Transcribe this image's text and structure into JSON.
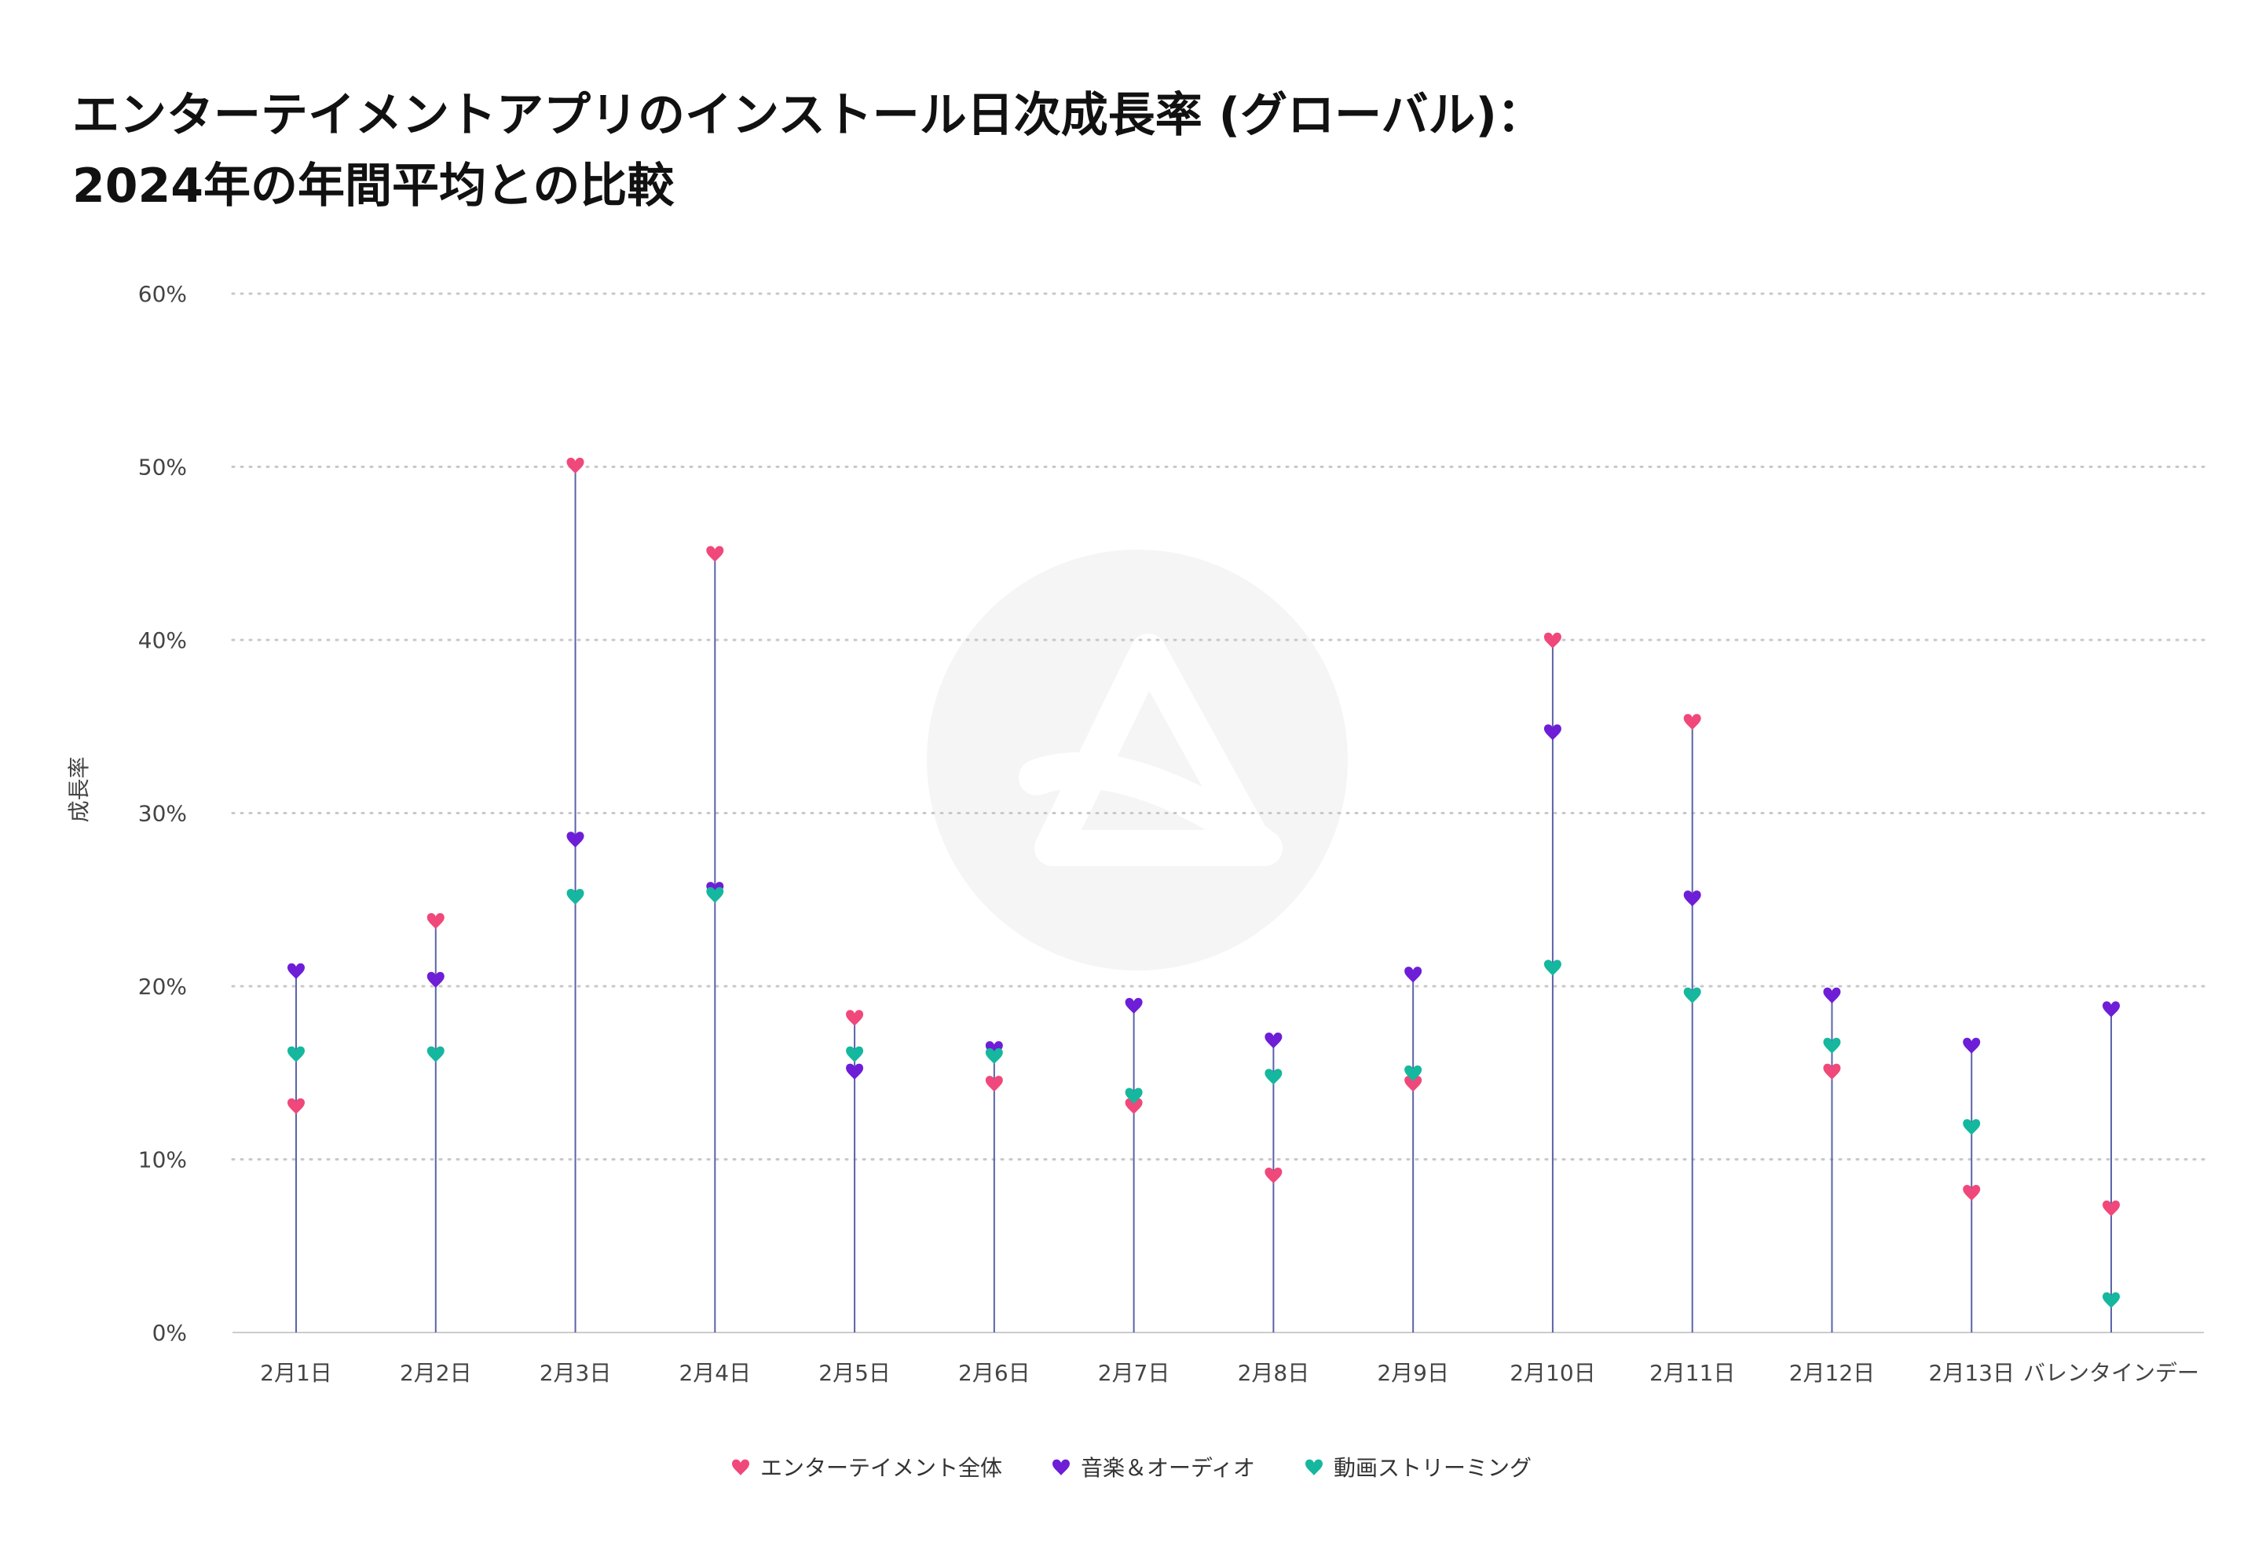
{
  "title_lines": [
    "エンターテイメントアプリのインストール日次成長率 (グローバル)：",
    "2024年の年間平均との比較"
  ],
  "colors": {
    "entertainment": "#f0487a",
    "music": "#6e1ed6",
    "video": "#15b89e",
    "stem": "#5b63a8",
    "grid": "#c8c8c8",
    "watermark": "#f5f5f5"
  },
  "chart_data": {
    "type": "dot-plot",
    "ylabel": "成長率",
    "ylim": [
      0,
      60
    ],
    "yticks": [
      {
        "value": 0,
        "label": "0%"
      },
      {
        "value": 10,
        "label": "10%"
      },
      {
        "value": 20,
        "label": "20%"
      },
      {
        "value": 30,
        "label": "30%"
      },
      {
        "value": 40,
        "label": "40%"
      },
      {
        "value": 50,
        "label": "50%"
      },
      {
        "value": 60,
        "label": "60%"
      }
    ],
    "grid": true,
    "legend_position": "bottom",
    "categories": [
      "2月1日",
      "2月2日",
      "2月3日",
      "2月4日",
      "2月5日",
      "2月6日",
      "2月7日",
      "2月8日",
      "2月9日",
      "2月10日",
      "2月11日",
      "2月12日",
      "2月13日",
      "バレンタインデー"
    ],
    "series": [
      {
        "key": "entertainment",
        "name": "エンターテイメント全体",
        "values": [
          13.1,
          23.8,
          50.1,
          45.0,
          18.2,
          14.4,
          13.1,
          9.1,
          14.4,
          40.0,
          35.3,
          15.1,
          8.1,
          7.2
        ]
      },
      {
        "key": "music",
        "name": "音楽＆オーディオ",
        "values": [
          20.9,
          20.4,
          28.5,
          25.6,
          15.1,
          16.4,
          18.9,
          16.9,
          20.7,
          34.7,
          25.1,
          19.5,
          16.6,
          18.7
        ]
      },
      {
        "key": "video",
        "name": "動画ストリーミング",
        "values": [
          16.1,
          16.1,
          25.2,
          25.3,
          16.1,
          16.0,
          13.7,
          14.8,
          15.0,
          21.1,
          19.5,
          16.6,
          11.9,
          1.9
        ]
      }
    ]
  }
}
